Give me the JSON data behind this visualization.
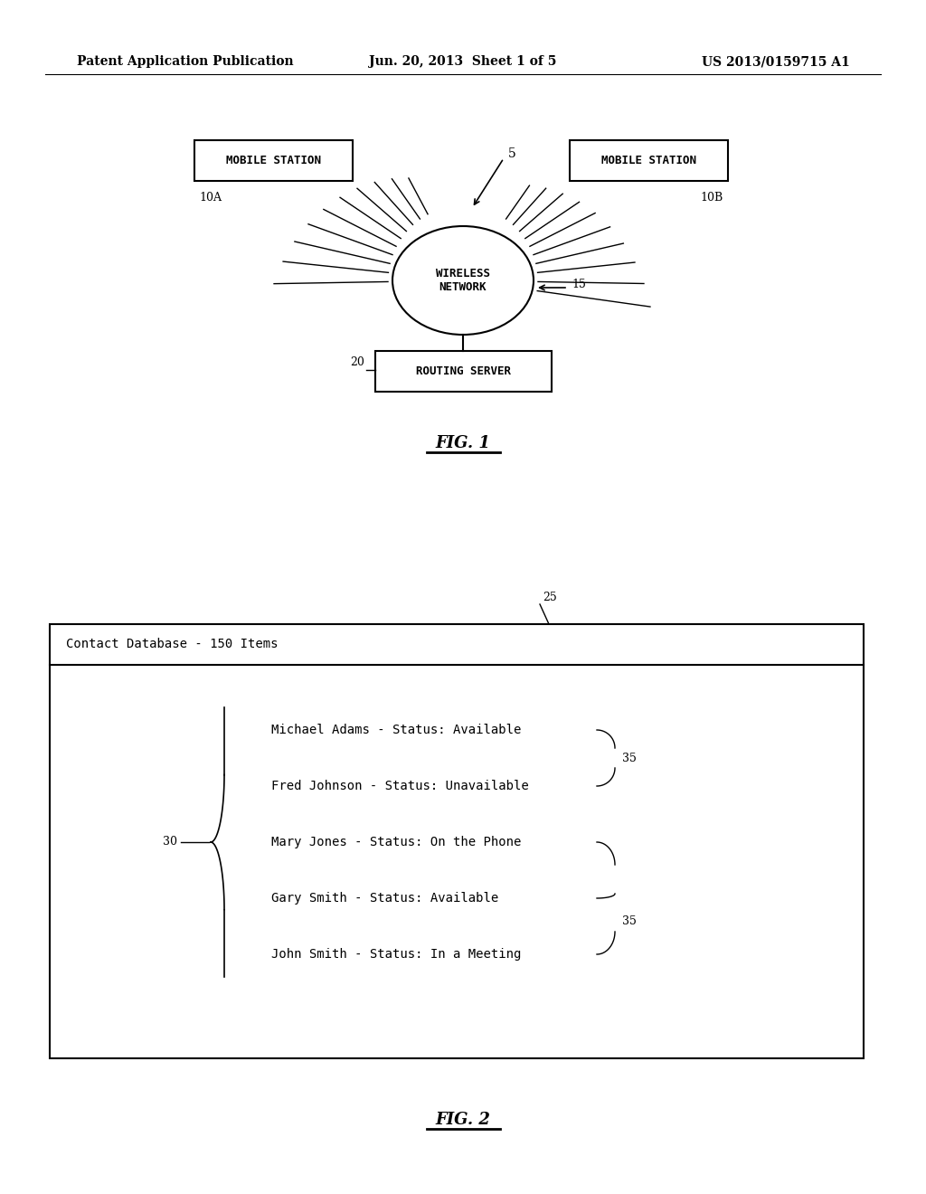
{
  "bg_color": "#ffffff",
  "header_text_left": "Patent Application Publication",
  "header_text_mid": "Jun. 20, 2013  Sheet 1 of 5",
  "header_text_right": "US 2013/0159715 A1",
  "fig1_label": "FIG. 1",
  "fig2_label": "FIG. 2",
  "mobile_station_left": "MOBILE STATION",
  "mobile_station_right": "MOBILE STATION",
  "label_10A": "10A",
  "label_10B": "10B",
  "label_5": "5",
  "label_15": "15",
  "label_20": "20",
  "wireless_network": "WIRELESS\nNETWORK",
  "routing_server": "ROUTING SERVER",
  "db_title": "Contact Database - 150 Items",
  "label_25": "25",
  "label_30": "30",
  "label_35a": "35",
  "label_35b": "35",
  "contacts": [
    "Michael Adams - Status: Available",
    "Fred Johnson - Status: Unavailable",
    "Mary Jones - Status: On the Phone",
    "Gary Smith - Status: Available",
    "John Smith - Status: In a Meeting"
  ]
}
